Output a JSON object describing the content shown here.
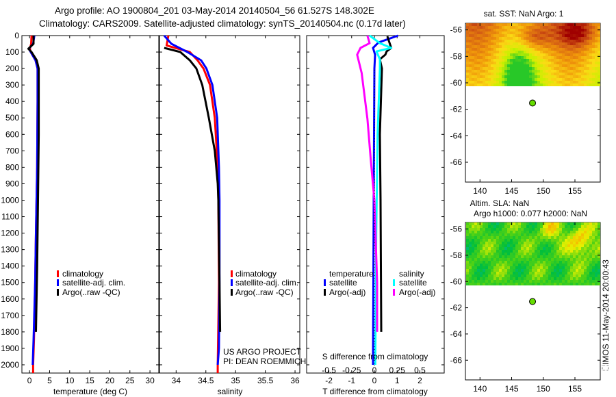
{
  "header": {
    "line1": "Argo profile: AO 1900804_201 03-May-2014 20140504_56 61.527S 148.302E",
    "line2": "Climatology: CARS2009. Satellite-adjusted climatology: synTS_20140504.nc (0.17d later)"
  },
  "colors": {
    "climatology": "#ff0000",
    "satellite": "#0000ff",
    "argo": "#000000",
    "sal_satellite": "#00ffff",
    "sal_argo": "#ff00ff",
    "marker": "#66dd00"
  },
  "chart_data": [
    {
      "type": "line",
      "id": "temperature",
      "xlabel": "temperature (deg C)",
      "ylabel": "",
      "xlim": [
        -1.9,
        32.2
      ],
      "ylim": [
        2050,
        0
      ],
      "xticks": [
        0,
        5,
        10,
        15,
        20,
        25,
        30
      ],
      "yticks": [
        0,
        100,
        200,
        300,
        400,
        500,
        600,
        700,
        800,
        900,
        1000,
        1100,
        1200,
        1300,
        1400,
        1500,
        1600,
        1700,
        1800,
        1900,
        2000
      ],
      "legend": [
        "climatology",
        "satellite-adj. clim.",
        "Argo(..raw -QC)"
      ],
      "series": [
        {
          "name": "climatology",
          "color": "#ff0000",
          "depth": [
            0,
            50,
            80,
            100,
            150,
            200,
            400,
            800,
            1200,
            1500,
            1850,
            2000,
            2050
          ],
          "values": [
            0.5,
            0.4,
            0.1,
            0.3,
            1.5,
            2.0,
            2.0,
            1.9,
            1.6,
            1.4,
            1.1,
            0.9,
            0.9
          ]
        },
        {
          "name": "satellite-adj. clim.",
          "color": "#0000ff",
          "depth": [
            0,
            50,
            80,
            100,
            150,
            200,
            400,
            800,
            1200,
            1500,
            1850,
            2000
          ],
          "values": [
            1.2,
            0.9,
            -0.2,
            0.3,
            1.5,
            2.0,
            2.0,
            1.9,
            1.6,
            1.4,
            1.0,
            0.8
          ]
        },
        {
          "name": "Argo(..raw -QC)",
          "color": "#000000",
          "depth": [
            0,
            50,
            80,
            100,
            150,
            200,
            600,
            1000,
            1400,
            1800
          ],
          "values": [
            1.0,
            1.0,
            -0.3,
            0.5,
            1.8,
            2.3,
            2.3,
            2.1,
            1.9,
            1.6
          ]
        }
      ]
    },
    {
      "type": "line",
      "id": "salinity",
      "xlabel": "salinity",
      "xlim": [
        33.72,
        36.08
      ],
      "ylim": [
        2050,
        0
      ],
      "xticks": [
        34,
        34.5,
        35,
        35.5,
        36
      ],
      "legend": [
        "climatology",
        "satellite-adj. clim.",
        "Argo(..raw -QC)"
      ],
      "annotation": [
        "US ARGO PROJECT",
        "PI: DEAN ROEMMICH"
      ],
      "series": [
        {
          "name": "climatology",
          "color": "#ff0000",
          "depth": [
            0,
            60,
            100,
            150,
            200,
            300,
            500,
            800,
            1000,
            1500,
            2000,
            2050
          ],
          "values": [
            33.87,
            33.84,
            34.23,
            34.36,
            34.46,
            34.57,
            34.65,
            34.7,
            34.71,
            34.72,
            34.7,
            34.7
          ]
        },
        {
          "name": "satellite-adj. clim.",
          "color": "#0000ff",
          "depth": [
            0,
            50,
            100,
            150,
            200,
            300,
            500,
            800,
            1000,
            1500,
            1900,
            2000
          ],
          "values": [
            33.8,
            33.92,
            34.19,
            34.42,
            34.51,
            34.61,
            34.69,
            34.72,
            34.73,
            34.73,
            34.72,
            34.7
          ]
        },
        {
          "name": "Argo(..raw -QC)",
          "color": "#000000",
          "depth": [
            75,
            100,
            150,
            200,
            300,
            500,
            700,
            900,
            1000,
            1500,
            1800
          ],
          "values": [
            33.8,
            34.07,
            34.23,
            34.34,
            34.44,
            34.55,
            34.65,
            34.7,
            34.71,
            34.73,
            34.74
          ]
        }
      ]
    },
    {
      "type": "line",
      "id": "difference",
      "xlabel": "T difference from climatology",
      "xlabel2": "S difference from climatology",
      "xlim": [
        -2.98,
        3.07
      ],
      "ylim": [
        2050,
        0
      ],
      "xticks": [
        -2,
        -1,
        0,
        1,
        2
      ],
      "xticks_S": [
        -0.5,
        -0.25,
        0,
        0.25,
        0.5
      ],
      "legend_temperature": {
        "title": "temperature",
        "items": [
          "satellite",
          "Argo(-adj)"
        ]
      },
      "legend_salinity": {
        "title": "salinity",
        "items": [
          "satellite",
          "Argo(-adj)"
        ]
      },
      "series": [
        {
          "name": "temperature satellite",
          "color": "#0000ff",
          "unit": "T",
          "depth": [
            0,
            42,
            75,
            116,
            200,
            1000,
            2000
          ],
          "values": [
            1.04,
            0.18,
            -0.06,
            0.03,
            0.0,
            -0.03,
            -0.06
          ]
        },
        {
          "name": "temperature Argo(-adj)",
          "color": "#000000",
          "unit": "T",
          "depth": [
            4,
            75,
            96,
            116,
            144,
            200,
            600,
            1000,
            1800
          ],
          "values": [
            0.57,
            0.74,
            0.54,
            0.48,
            0.24,
            0.33,
            0.24,
            0.27,
            0.3
          ]
        },
        {
          "name": "salinity satellite",
          "color": "#00ffff",
          "unit": "S",
          "depth": [
            0,
            46,
            75,
            96,
            144,
            200,
            600,
            1200,
            2000
          ],
          "values": [
            -0.053,
            0.06,
            0.186,
            0.023,
            0.06,
            0.06,
            0.035,
            0.02,
            0.01
          ]
        },
        {
          "name": "salinity Argo(-adj)",
          "color": "#ff00ff",
          "unit": "S",
          "depth": [
            0,
            46,
            75,
            116,
            227,
            505,
            754,
            1000,
            1500,
            1800
          ],
          "values": [
            -0.077,
            -0.053,
            -0.153,
            -0.19,
            -0.14,
            -0.077,
            -0.04,
            0.0,
            0.03,
            0.03
          ]
        }
      ]
    },
    {
      "type": "heatmap",
      "id": "sst-map",
      "title": "sat. SST: NaN Argo: 1",
      "xlim": [
        137.7,
        159
      ],
      "ylim": [
        -67.5,
        -55.5
      ],
      "xticks": [
        140,
        145,
        150,
        155
      ],
      "yticks": [
        -56,
        -58,
        -60,
        -62,
        -64,
        -66
      ],
      "data_lat_range": [
        -60.1,
        -55.5
      ],
      "argo_point": {
        "lon": 148.302,
        "lat": -61.527
      }
    },
    {
      "type": "heatmap",
      "id": "sla-map",
      "title": "Altim. SLA: NaN",
      "subtitle": "Argo h1000: 0.077 h2000: NaN",
      "xlim": [
        137.7,
        159
      ],
      "ylim": [
        -67.5,
        -55.5
      ],
      "xticks": [
        140,
        145,
        150,
        155
      ],
      "yticks": [
        -56,
        -58,
        -60,
        -62,
        -64,
        -66
      ],
      "data_lat_range": [
        -60.1,
        -55.5
      ],
      "argo_point": {
        "lon": 148.302,
        "lat": -61.527
      }
    }
  ],
  "footer": {
    "timestamp": "IMOS 11-May-2014 20:00:43"
  }
}
